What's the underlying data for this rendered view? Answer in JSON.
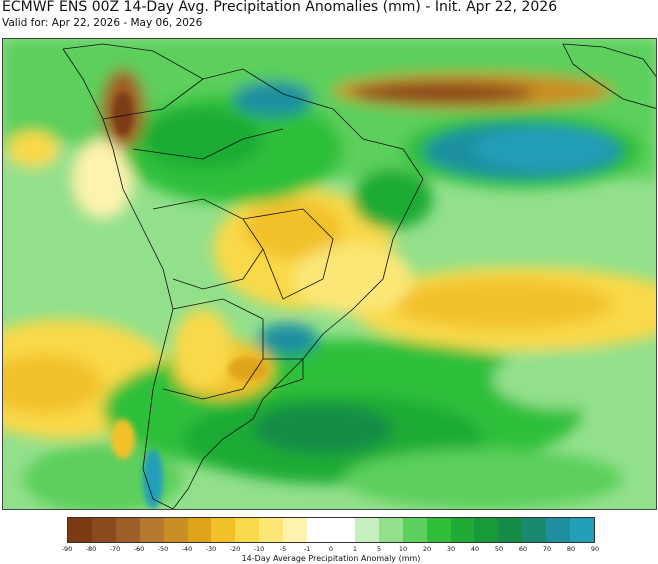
{
  "header": {
    "title": "ECMWF ENS 00Z 14-Day Avg. Precipitation Anomalies (mm) - Init. Apr 22, 2026",
    "subtitle": "Valid for: Apr 22, 2026 - May 06, 2026"
  },
  "colorbar": {
    "label": "14-Day Average Precipitation Anomaly (mm)",
    "ticks": [
      "-90",
      "-80",
      "-70",
      "-60",
      "-50",
      "-40",
      "-30",
      "-20",
      "-10",
      "-5",
      "-1",
      "0",
      "1",
      "5",
      "10",
      "20",
      "30",
      "40",
      "50",
      "60",
      "70",
      "80",
      "90"
    ],
    "colors": [
      "#7a3a12",
      "#8b4a1c",
      "#9e5e28",
      "#b5782e",
      "#c98e24",
      "#e0a41c",
      "#f2c12a",
      "#f9d94a",
      "#fbe676",
      "#fdf3ad",
      "#ffffff",
      "#ffffff",
      "#c6efc0",
      "#93e08c",
      "#5ccf5c",
      "#2fbf3a",
      "#1fab35",
      "#179a3a",
      "#178c46",
      "#1a8a6e",
      "#1f8fa0",
      "#239eb9"
    ]
  },
  "map": {
    "region": "South America",
    "palette": {
      "wet_strong": "#239eb9",
      "wet": "#2fbf3a",
      "wet_light": "#93e08c",
      "dry_light": "#fbe676",
      "dry": "#f2c12a",
      "dry_strong": "#8b4a1c"
    }
  }
}
